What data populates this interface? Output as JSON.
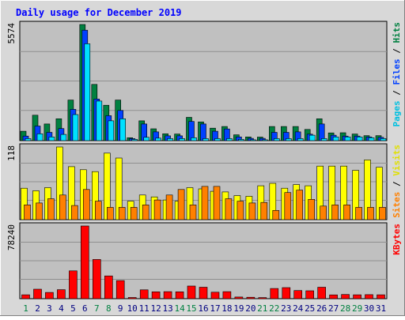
{
  "chart_data": {
    "title": "Daily usage for December 2019",
    "days": [
      "1",
      "2",
      "3",
      "4",
      "5",
      "6",
      "7",
      "8",
      "9",
      "10",
      "11",
      "12",
      "13",
      "14",
      "15",
      "16",
      "17",
      "18",
      "19",
      "20",
      "21",
      "22",
      "23",
      "24",
      "25",
      "26",
      "27",
      "28",
      "29",
      "30",
      "31"
    ],
    "weekend_days": [
      "1",
      "7",
      "8",
      "14",
      "15",
      "21",
      "22",
      "28",
      "29"
    ],
    "colors": {
      "hits": "#008040",
      "files": "#0040ff",
      "pages": "#00e0ff",
      "visits": "#ffff00",
      "sites": "#ff8000",
      "kbytes": "#ff0000",
      "weekend_label": "#008040",
      "weekday_label": "#000080",
      "panel": "#c0c0c0",
      "frame": "#d8d8d8"
    },
    "panels": [
      {
        "type": "bar",
        "max_label": "5574",
        "ymax": 5574,
        "legend": [
          {
            "text": "Pages",
            "color": "#00c0e0"
          },
          {
            "text": " / ",
            "color": "#000000"
          },
          {
            "text": "Files",
            "color": "#0040ff"
          },
          {
            "text": " / ",
            "color": "#000000"
          },
          {
            "text": "Hits",
            "color": "#008040"
          }
        ],
        "series": [
          {
            "name": "Hits",
            "values": [
              450,
              1220,
              800,
              1050,
              1950,
              5574,
              2700,
              1700,
              1950,
              140,
              950,
              570,
              330,
              320,
              1120,
              900,
              600,
              680,
              280,
              180,
              170,
              680,
              680,
              680,
              540,
              1050,
              370,
              380,
              320,
              240,
              240
            ]
          },
          {
            "name": "Files",
            "values": [
              220,
              700,
              400,
              580,
              1500,
              5300,
              2000,
              1200,
              1450,
              100,
              800,
              420,
              230,
              230,
              920,
              800,
              450,
              560,
              180,
              110,
              110,
              400,
              400,
              420,
              310,
              800,
              260,
              220,
              220,
              180,
              160
            ]
          },
          {
            "name": "Pages",
            "values": [
              100,
              330,
              180,
              300,
              1250,
              4650,
              1900,
              950,
              1050,
              60,
              160,
              120,
              100,
              100,
              140,
              100,
              100,
              100,
              60,
              40,
              40,
              100,
              100,
              100,
              260,
              100,
              180,
              180,
              180,
              140,
              100
            ]
          }
        ]
      },
      {
        "type": "bar",
        "max_label": "118",
        "ymax": 118,
        "legend": [
          {
            "text": "Sites",
            "color": "#ff8000"
          },
          {
            "text": " / ",
            "color": "#000000"
          },
          {
            "text": "Visits",
            "color": "#e0e000"
          }
        ],
        "series": [
          {
            "name": "Visits",
            "values": [
              51,
              47,
              52,
              118,
              86,
              81,
              78,
              108,
              100,
              30,
              40,
              37,
              32,
              30,
              52,
              50,
              46,
              45,
              39,
              38,
              55,
              59,
              51,
              57,
              55,
              87,
              87,
              87,
              80,
              97,
              85
            ]
          },
          {
            "name": "Sites",
            "values": [
              24,
              27,
              34,
              40,
              23,
              49,
              30,
              20,
              20,
              20,
              24,
              32,
              40,
              49,
              24,
              54,
              54,
              34,
              30,
              27,
              28,
              15,
              44,
              48,
              33,
              22,
              24,
              24,
              20,
              20,
              20
            ]
          }
        ]
      },
      {
        "type": "bar",
        "max_label": "78240",
        "ymax": 78240,
        "legend": [
          {
            "text": "KBytes",
            "color": "#ff0000"
          }
        ],
        "series": [
          {
            "name": "KBytes",
            "values": [
              4200,
              10200,
              6700,
              9700,
              29900,
              78240,
              42200,
              24500,
              19500,
              1300,
              9500,
              7400,
              7600,
              7400,
              13600,
              12300,
              7000,
              7600,
              1800,
              1500,
              1200,
              11000,
              11900,
              8800,
              8500,
              12300,
              4100,
              4500,
              4200,
              4300,
              4200
            ]
          }
        ]
      }
    ]
  }
}
